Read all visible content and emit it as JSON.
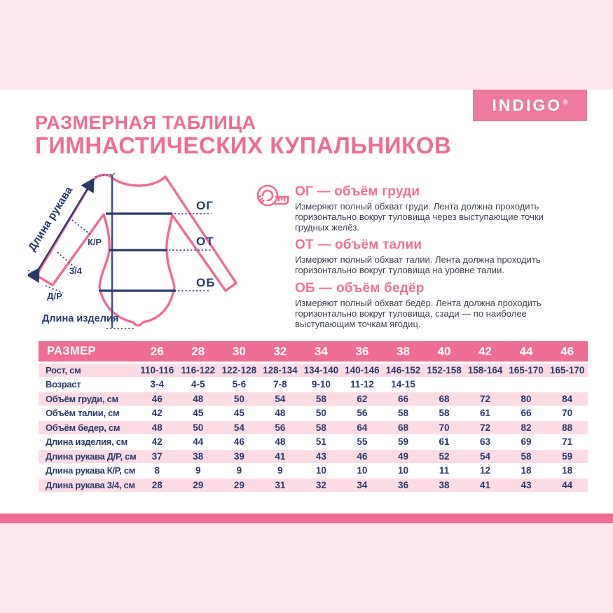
{
  "brand": {
    "logo_text": "INDIGO",
    "registered": "®"
  },
  "title": {
    "line1": "РАЗМЕРНАЯ ТАБЛИЦА",
    "line2": "ГИМНАСТИЧЕСКИХ КУПАЛЬНИКОВ"
  },
  "colors": {
    "accent_pink": "#ee6d94",
    "logo_pink": "#ee7aa0",
    "light_pink_band": "#fce8ee",
    "table_row_pink": "#fbdce5",
    "navy": "#2b3a6b",
    "body_text": "#3d4151"
  },
  "diagram": {
    "labels": {
      "sleeve_length": "Длина рукава",
      "kr": "К/Р",
      "three_quarter": "3/4",
      "dr": "Д/Р",
      "product_length": "Длина изделия",
      "og": "ОГ",
      "ot": "ОТ",
      "ob": "ОБ"
    }
  },
  "measurements": [
    {
      "heading": "ОГ — объём груди",
      "text": "Измеряют полный обхват груди. Лента должна проходить горизонтально вокруг туловища через выступающие точки грудных желёз."
    },
    {
      "heading": "ОТ — объём талии",
      "text": "Измеряют полный обхват талии. Лента должна проходить горизонтально вокруг туловища на уровне талии."
    },
    {
      "heading": "ОБ — объём бедёр",
      "text": "Измеряют полный обхват бедёр. Лента должна проходить горизонтально вокруг туловища, сзади — по наиболее выступающим точкам ягодиц."
    }
  ],
  "table": {
    "header": {
      "label": "РАЗМЕР",
      "sizes": [
        "26",
        "28",
        "30",
        "32",
        "34",
        "36",
        "38",
        "40",
        "42",
        "44",
        "46"
      ]
    },
    "rows": [
      {
        "label": "Рост, см",
        "shade": true,
        "values": [
          "110-116",
          "116-122",
          "122-128",
          "128-134",
          "134-140",
          "140-146",
          "146-152",
          "152-158",
          "158-164",
          "165-170",
          "165-170"
        ]
      },
      {
        "label": "Возраст",
        "shade": false,
        "values": [
          "3-4",
          "4-5",
          "5-6",
          "7-8",
          "9-10",
          "11-12",
          "14-15",
          "",
          "",
          "",
          ""
        ]
      },
      {
        "label": "Объём груди, см",
        "shade": true,
        "values": [
          "46",
          "48",
          "50",
          "54",
          "58",
          "62",
          "66",
          "68",
          "72",
          "80",
          "84"
        ]
      },
      {
        "label": "Объём талии, см",
        "shade": false,
        "values": [
          "42",
          "45",
          "45",
          "48",
          "50",
          "56",
          "58",
          "58",
          "61",
          "66",
          "70"
        ]
      },
      {
        "label": "Объём бедер, см",
        "shade": true,
        "values": [
          "48",
          "50",
          "54",
          "56",
          "58",
          "64",
          "68",
          "70",
          "72",
          "82",
          "88"
        ]
      },
      {
        "label": "Длина изделия, см",
        "shade": false,
        "values": [
          "42",
          "44",
          "46",
          "48",
          "51",
          "55",
          "59",
          "61",
          "63",
          "69",
          "71"
        ]
      },
      {
        "label": "Длина рукава Д/Р, см",
        "shade": true,
        "values": [
          "37",
          "38",
          "39",
          "41",
          "43",
          "46",
          "49",
          "52",
          "54",
          "58",
          "59"
        ]
      },
      {
        "label": "Длина рукава К/Р, см",
        "shade": false,
        "values": [
          "8",
          "9",
          "9",
          "9",
          "10",
          "10",
          "10",
          "11",
          "12",
          "18",
          "18"
        ]
      },
      {
        "label": "Длина рукава 3/4, см",
        "shade": true,
        "values": [
          "28",
          "29",
          "29",
          "31",
          "32",
          "34",
          "36",
          "38",
          "41",
          "43",
          "44"
        ]
      }
    ]
  }
}
